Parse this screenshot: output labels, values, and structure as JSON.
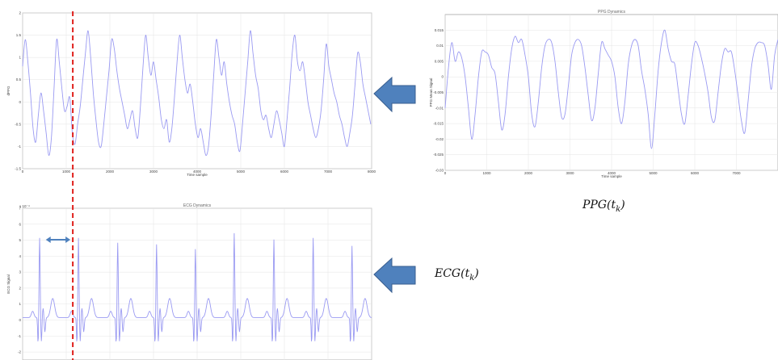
{
  "chart_data": [
    {
      "id": "dppg",
      "type": "line",
      "title": "",
      "xlabel": "Time sample",
      "ylabel": "dPPG",
      "xlim": [
        0,
        8000
      ],
      "ylim": [
        -1.5,
        2
      ],
      "xticks": [
        "0",
        "1000",
        "2000",
        "3000",
        "4000",
        "5000",
        "6000",
        "7000",
        "8000"
      ],
      "yticks": [
        "-1.5",
        "-1",
        "-0.5",
        "0",
        "0.5",
        "1",
        "1.5",
        "2"
      ],
      "grid": true,
      "color": "#9a9af2",
      "series": [
        {
          "x": [
            0,
            60,
            120,
            180,
            240,
            300,
            360,
            420,
            480,
            540,
            600,
            660,
            720,
            780,
            840,
            900,
            960,
            1020,
            1080,
            1140,
            1200,
            1260,
            1320,
            1380,
            1440,
            1500,
            1560,
            1620,
            1680,
            1740,
            1800,
            1860,
            1920,
            1980,
            2040,
            2100,
            2160,
            2220,
            2280,
            2340,
            2400,
            2460,
            2520,
            2580,
            2640,
            2700,
            2760,
            2820,
            2880,
            2940,
            3000,
            3060,
            3120,
            3180,
            3240,
            3300,
            3360,
            3420,
            3480,
            3540,
            3600,
            3660,
            3720,
            3780,
            3840,
            3900,
            3960,
            4020,
            4080,
            4140,
            4200,
            4260,
            4320,
            4380,
            4440,
            4500,
            4560,
            4620,
            4680,
            4740,
            4800,
            4860,
            4920,
            4980,
            5040,
            5100,
            5160,
            5220,
            5280,
            5340,
            5400,
            5460,
            5520,
            5580,
            5640,
            5700,
            5760,
            5820,
            5880,
            5940,
            6000,
            6060,
            6120,
            6180,
            6240,
            6300,
            6360,
            6420,
            6480,
            6540,
            6600,
            6660,
            6720,
            6780,
            6840,
            6900,
            6960,
            7020,
            7080,
            7140,
            7200,
            7260,
            7320,
            7380,
            7440,
            7500,
            7560,
            7620,
            7680,
            7740,
            7800,
            7860,
            7920,
            7980
          ],
          "y": [
            0.8,
            1.4,
            0.9,
            0.2,
            -0.6,
            -0.9,
            -0.3,
            0.2,
            -0.2,
            -0.7,
            -1.2,
            -0.8,
            0.3,
            1.4,
            0.9,
            0.3,
            -0.2,
            -0.1,
            0.1,
            -0.7,
            -0.95,
            -0.5,
            -0.1,
            0.5,
            1.1,
            1.6,
            1.0,
            0.2,
            -0.4,
            -0.9,
            -1.0,
            -0.5,
            0.1,
            0.7,
            1.4,
            1.2,
            0.7,
            0.3,
            0.0,
            -0.3,
            -0.6,
            -0.4,
            -0.2,
            -0.6,
            -0.8,
            -0.1,
            0.8,
            1.5,
            1.0,
            0.6,
            0.9,
            0.5,
            0.1,
            -0.4,
            -0.6,
            -0.4,
            -0.9,
            -0.6,
            0.1,
            0.9,
            1.5,
            1.0,
            0.5,
            0.2,
            0.4,
            0.0,
            -0.5,
            -0.8,
            -0.6,
            -0.9,
            -1.2,
            -1.0,
            -0.3,
            0.6,
            1.4,
            1.0,
            0.6,
            0.9,
            0.4,
            0.0,
            -0.3,
            -0.5,
            -0.9,
            -1.1,
            -0.5,
            0.2,
            0.9,
            1.6,
            1.1,
            0.6,
            0.3,
            -0.2,
            -0.4,
            -0.3,
            -0.6,
            -0.8,
            -0.5,
            -0.2,
            -0.4,
            -0.7,
            -1.0,
            -0.4,
            0.3,
            1.1,
            1.5,
            0.9,
            0.7,
            0.9,
            0.5,
            0.0,
            -0.3,
            -0.6,
            -0.8,
            -0.6,
            -0.2,
            0.5,
            1.3,
            0.8,
            0.5,
            0.2,
            0.0,
            -0.3,
            -0.5,
            -0.8,
            -1.0,
            -0.7,
            -0.3,
            0.4,
            1.1,
            0.9,
            0.4,
            0.1,
            -0.2,
            -0.5
          ]
        }
      ]
    },
    {
      "id": "ppg",
      "type": "line",
      "title": "PPG Dynamics",
      "xlabel": "Time sample",
      "ylabel": "PPG Mean Signal",
      "xlim": [
        0,
        8000
      ],
      "ylim": [
        -0.03,
        0.02
      ],
      "xticks": [
        "0",
        "1000",
        "2000",
        "3000",
        "4000",
        "5000",
        "6000",
        "7000"
      ],
      "yticks": [
        "-0.03",
        "-0.025",
        "-0.02",
        "-0.015",
        "-0.01",
        "-0.005",
        "0",
        "0.005",
        "0.01",
        "0.015"
      ],
      "grid": true,
      "color": "#9a9af2",
      "series": [
        {
          "x": [
            0,
            80,
            160,
            240,
            320,
            400,
            480,
            560,
            640,
            720,
            800,
            880,
            960,
            1040,
            1120,
            1200,
            1280,
            1360,
            1440,
            1520,
            1600,
            1680,
            1760,
            1840,
            1920,
            2000,
            2080,
            2160,
            2240,
            2320,
            2400,
            2480,
            2560,
            2640,
            2720,
            2800,
            2880,
            2960,
            3040,
            3120,
            3200,
            3280,
            3360,
            3440,
            3520,
            3600,
            3680,
            3760,
            3840,
            3920,
            4000,
            4080,
            4160,
            4240,
            4320,
            4400,
            4480,
            4560,
            4640,
            4720,
            4800,
            4880,
            4960,
            5040,
            5120,
            5200,
            5280,
            5360,
            5440,
            5520,
            5600,
            5680,
            5760,
            5840,
            5920,
            6000,
            6080,
            6160,
            6240,
            6320,
            6400,
            6480,
            6560,
            6640,
            6720,
            6800,
            6880,
            6960,
            7040,
            7120,
            7200,
            7280,
            7360,
            7440,
            7520,
            7600,
            7680,
            7760,
            7840,
            7920,
            8000
          ],
          "y": [
            -0.01,
            0.003,
            0.011,
            0.005,
            0.008,
            0.006,
            0.0,
            -0.01,
            -0.02,
            -0.012,
            0.0,
            0.008,
            0.008,
            0.007,
            0.003,
            0.001,
            -0.008,
            -0.017,
            -0.012,
            0.0,
            0.009,
            0.013,
            0.011,
            0.012,
            0.007,
            0.0,
            -0.012,
            -0.016,
            -0.008,
            0.003,
            0.01,
            0.012,
            0.011,
            0.005,
            -0.005,
            -0.013,
            -0.012,
            -0.003,
            0.007,
            0.011,
            0.012,
            0.01,
            0.003,
            -0.006,
            -0.014,
            -0.01,
            0.001,
            0.011,
            0.009,
            0.007,
            0.005,
            0.0,
            -0.01,
            -0.015,
            -0.008,
            0.004,
            0.01,
            0.012,
            0.01,
            0.002,
            -0.004,
            -0.012,
            -0.023,
            -0.012,
            0.002,
            0.011,
            0.015,
            0.009,
            0.005,
            0.004,
            -0.004,
            -0.012,
            -0.015,
            -0.006,
            0.004,
            0.011,
            0.01,
            0.006,
            0.001,
            -0.005,
            -0.013,
            -0.014,
            -0.005,
            0.004,
            0.009,
            0.008,
            0.008,
            0.002,
            -0.006,
            -0.014,
            -0.018,
            -0.008,
            0.003,
            0.009,
            0.011,
            0.011,
            0.01,
            0.004,
            -0.004,
            0.007,
            0.012
          ]
        }
      ]
    },
    {
      "id": "ecg",
      "type": "line",
      "title": "ECG Dynamics",
      "xlabel": "",
      "ylabel": "ECG Signal",
      "exponent": "x 10⁻⁴",
      "xlim": [
        0,
        8000
      ],
      "ylim": [
        -2.5,
        7
      ],
      "yticks": [
        "-2",
        "-1",
        "0",
        "1",
        "2",
        "3",
        "4",
        "5",
        "6",
        "7"
      ],
      "grid": true,
      "color": "#9a9af2",
      "beats_x": [
        390,
        1280,
        2180,
        3070,
        3960,
        4850,
        5760,
        6660,
        7550
      ],
      "beat_peaks": [
        5.0,
        5.0,
        4.7,
        4.6,
        4.3,
        5.3,
        4.9,
        5.0,
        4.5
      ]
    }
  ],
  "annotations": {
    "ppg_caption": "PPG(t",
    "ppg_caption_sub": "k",
    "ppg_caption_close": ")",
    "ecg_caption": "ECG(t",
    "ecg_caption_sub": "k",
    "ecg_caption_close": ")",
    "marker_line_time": 1150,
    "arrow_color": "#4f81bd",
    "marker_color": "#e0201c"
  }
}
